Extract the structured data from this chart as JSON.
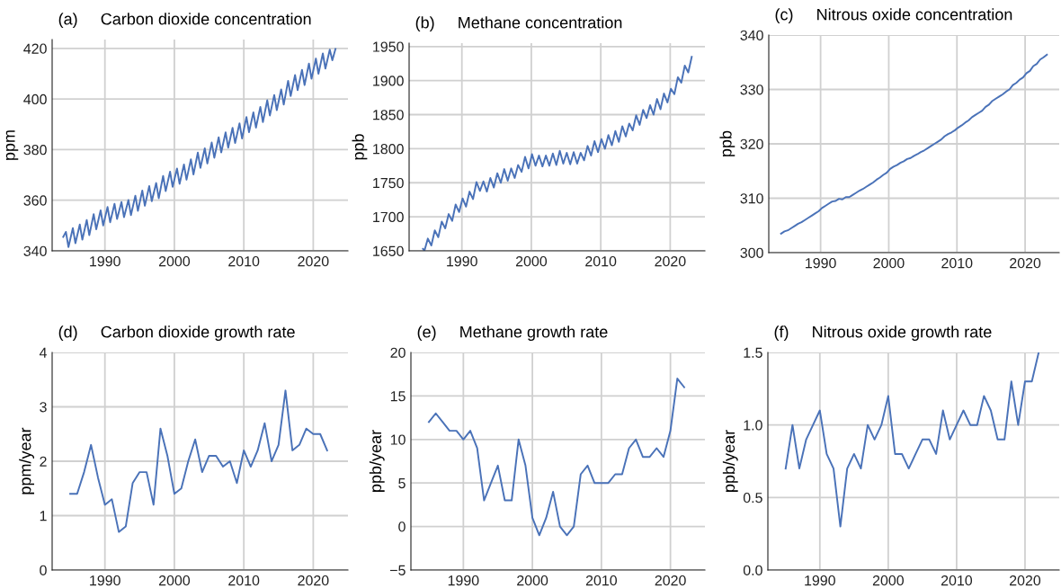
{
  "chart_data": [
    {
      "type": "line",
      "title": "(a)     Carbon dioxide concentration",
      "ylabel": "ppm",
      "xlim": [
        1982.4,
        2025
      ],
      "ylim": [
        340,
        423.5
      ],
      "xticks": [
        1990,
        2000,
        2010,
        2020
      ],
      "yticks": [
        340,
        360,
        380,
        400,
        420
      ],
      "grid": true,
      "x": [
        1984.0,
        1984.38,
        1984.75,
        1985.38,
        1985.75,
        1986.38,
        1986.75,
        1987.38,
        1987.75,
        1988.38,
        1988.75,
        1989.38,
        1989.75,
        1990.38,
        1990.75,
        1991.38,
        1991.75,
        1992.38,
        1992.75,
        1993.38,
        1993.75,
        1994.38,
        1994.75,
        1995.38,
        1995.75,
        1996.38,
        1996.75,
        1997.38,
        1997.75,
        1998.38,
        1998.75,
        1999.38,
        1999.75,
        2000.38,
        2000.75,
        2001.38,
        2001.75,
        2002.38,
        2002.75,
        2003.38,
        2003.75,
        2004.38,
        2004.75,
        2005.38,
        2005.75,
        2006.38,
        2006.75,
        2007.38,
        2007.75,
        2008.38,
        2008.75,
        2009.38,
        2009.75,
        2010.38,
        2010.75,
        2011.38,
        2011.75,
        2012.38,
        2012.75,
        2013.38,
        2013.75,
        2014.38,
        2014.75,
        2015.38,
        2015.75,
        2016.38,
        2016.75,
        2017.38,
        2017.75,
        2018.38,
        2018.75,
        2019.38,
        2019.75,
        2020.38,
        2020.75,
        2021.38,
        2021.75,
        2022.38,
        2022.75,
        2023.2
      ],
      "series": [
        {
          "color": "#4a72b8",
          "values": [
            345.5,
            347.5,
            341.5,
            349.0,
            343.0,
            350.4,
            344.4,
            352.2,
            346.2,
            354.5,
            348.5,
            356.0,
            350.0,
            357.3,
            351.3,
            358.6,
            352.6,
            359.3,
            353.3,
            360.1,
            354.1,
            361.8,
            355.8,
            363.8,
            357.8,
            365.6,
            359.6,
            366.8,
            360.8,
            369.6,
            363.6,
            371.3,
            365.3,
            372.5,
            366.5,
            374.1,
            368.1,
            376.2,
            370.2,
            378.8,
            372.8,
            380.5,
            374.5,
            382.8,
            376.8,
            384.9,
            378.9,
            386.8,
            380.8,
            388.6,
            382.6,
            390.4,
            384.4,
            392.9,
            386.9,
            394.7,
            388.7,
            396.9,
            390.9,
            399.5,
            393.5,
            401.6,
            395.6,
            403.8,
            397.8,
            407.2,
            401.2,
            409.5,
            403.5,
            411.5,
            405.5,
            414.0,
            408.0,
            416.0,
            410.0,
            418.0,
            412.0,
            419.5,
            415.3,
            419.8
          ]
        }
      ]
    },
    {
      "type": "line",
      "title": "(b)     Methane concentration",
      "ylabel": "ppb",
      "xlim": [
        1982.4,
        2025
      ],
      "ylim": [
        1650,
        1955
      ],
      "xticks": [
        1990,
        2000,
        2010,
        2020
      ],
      "yticks": [
        1650,
        1700,
        1750,
        1800,
        1850,
        1900,
        1950
      ],
      "grid": true,
      "x": [
        1984.4,
        1984.6,
        1985.1,
        1985.6,
        1986.1,
        1986.6,
        1987.1,
        1987.6,
        1988.1,
        1988.6,
        1989.1,
        1989.6,
        1990.1,
        1990.6,
        1991.1,
        1991.6,
        1992.1,
        1992.6,
        1993.1,
        1993.6,
        1994.1,
        1994.6,
        1995.1,
        1995.6,
        1996.1,
        1996.6,
        1997.1,
        1997.6,
        1998.1,
        1998.6,
        1999.1,
        1999.6,
        2000.1,
        2000.6,
        2001.1,
        2001.6,
        2002.1,
        2002.6,
        2003.1,
        2003.6,
        2004.1,
        2004.6,
        2005.1,
        2005.6,
        2006.1,
        2006.6,
        2007.1,
        2007.6,
        2008.1,
        2008.6,
        2009.1,
        2009.6,
        2010.1,
        2010.6,
        2011.1,
        2011.6,
        2012.1,
        2012.6,
        2013.1,
        2013.6,
        2014.1,
        2014.6,
        2015.1,
        2015.6,
        2016.1,
        2016.6,
        2017.1,
        2017.6,
        2018.1,
        2018.6,
        2019.1,
        2019.6,
        2020.1,
        2020.6,
        2021.1,
        2021.6,
        2022.1,
        2022.6,
        2023.1
      ],
      "series": [
        {
          "color": "#4a72b8",
          "values": [
            1653,
            1650,
            1668,
            1658,
            1680,
            1670,
            1693,
            1683,
            1704,
            1694,
            1718,
            1707,
            1727,
            1715,
            1737,
            1726,
            1751,
            1738,
            1752,
            1737,
            1757,
            1743,
            1764,
            1750,
            1770,
            1753,
            1771,
            1757,
            1776,
            1766,
            1788,
            1771,
            1792,
            1775,
            1790,
            1774,
            1790,
            1775,
            1793,
            1776,
            1797,
            1778,
            1794,
            1777,
            1795,
            1778,
            1794,
            1783,
            1804,
            1790,
            1811,
            1795,
            1814,
            1800,
            1820,
            1805,
            1826,
            1810,
            1833,
            1818,
            1837,
            1827,
            1849,
            1835,
            1857,
            1845,
            1864,
            1850,
            1873,
            1858,
            1881,
            1868,
            1888,
            1880,
            1905,
            1897,
            1922,
            1912,
            1935
          ]
        }
      ]
    },
    {
      "type": "line",
      "title": "(c)     Nitrous oxide concentration",
      "ylabel": "ppb",
      "xlim": [
        1982.4,
        2025
      ],
      "ylim": [
        300,
        340
      ],
      "xticks": [
        1990,
        2000,
        2010,
        2020
      ],
      "yticks": [
        300,
        310,
        320,
        330,
        340
      ],
      "grid": true,
      "x": [
        1984.2,
        1984.7,
        1985.2,
        1985.7,
        1986.2,
        1986.7,
        1987.2,
        1987.7,
        1988.2,
        1988.7,
        1989.2,
        1989.7,
        1990.2,
        1990.7,
        1991.2,
        1991.7,
        1992.2,
        1992.7,
        1993.2,
        1993.7,
        1994.2,
        1994.7,
        1995.2,
        1995.7,
        1996.2,
        1996.7,
        1997.2,
        1997.7,
        1998.2,
        1998.7,
        1999.2,
        1999.7,
        2000.2,
        2000.7,
        2001.2,
        2001.7,
        2002.2,
        2002.7,
        2003.2,
        2003.7,
        2004.2,
        2004.7,
        2005.2,
        2005.7,
        2006.2,
        2006.7,
        2007.2,
        2007.7,
        2008.2,
        2008.7,
        2009.2,
        2009.7,
        2010.2,
        2010.7,
        2011.2,
        2011.7,
        2012.2,
        2012.7,
        2013.2,
        2013.7,
        2014.2,
        2014.7,
        2015.2,
        2015.7,
        2016.2,
        2016.7,
        2017.2,
        2017.7,
        2018.2,
        2018.7,
        2019.2,
        2019.7,
        2020.2,
        2020.7,
        2021.2,
        2021.7,
        2022.2,
        2022.7,
        2023.2
      ],
      "series": [
        {
          "color": "#4a72b8",
          "values": [
            303.5,
            303.9,
            304.1,
            304.5,
            304.9,
            305.3,
            305.6,
            306.0,
            306.4,
            306.8,
            307.2,
            307.6,
            308.2,
            308.6,
            309.0,
            309.4,
            309.5,
            309.9,
            309.8,
            310.2,
            310.2,
            310.6,
            311.0,
            311.4,
            311.7,
            312.1,
            312.5,
            312.9,
            313.4,
            313.8,
            314.3,
            314.7,
            315.4,
            315.8,
            316.1,
            316.5,
            316.8,
            317.2,
            317.4,
            317.8,
            318.1,
            318.5,
            318.8,
            319.2,
            319.6,
            320.0,
            320.4,
            320.8,
            321.4,
            321.8,
            322.1,
            322.5,
            323.0,
            323.4,
            323.9,
            324.3,
            324.9,
            325.3,
            325.7,
            326.1,
            326.8,
            327.2,
            327.9,
            328.3,
            328.7,
            329.1,
            329.6,
            330.0,
            330.8,
            331.2,
            331.8,
            332.2,
            333.0,
            333.4,
            334.3,
            334.7,
            335.5,
            335.9,
            336.4
          ]
        }
      ]
    },
    {
      "type": "line",
      "title": "(d)     Carbon dioxide growth rate",
      "ylabel": "ppm/year",
      "xlim": [
        1982.4,
        2025
      ],
      "ylim": [
        0,
        4
      ],
      "xticks": [
        1990,
        2000,
        2010,
        2020
      ],
      "yticks": [
        0,
        1,
        2,
        3,
        4
      ],
      "grid": true,
      "x": [
        1985,
        1986,
        1987,
        1988,
        1989,
        1990,
        1991,
        1992,
        1993,
        1994,
        1995,
        1996,
        1997,
        1998,
        1999,
        2000,
        2001,
        2002,
        2003,
        2004,
        2005,
        2006,
        2007,
        2008,
        2009,
        2010,
        2011,
        2012,
        2013,
        2014,
        2015,
        2016,
        2017,
        2018,
        2019,
        2020,
        2021,
        2022
      ],
      "series": [
        {
          "color": "#4a72b8",
          "values": [
            1.4,
            1.4,
            1.8,
            2.3,
            1.7,
            1.2,
            1.3,
            0.7,
            0.8,
            1.6,
            1.8,
            1.8,
            1.2,
            2.6,
            2.1,
            1.4,
            1.5,
            2.0,
            2.4,
            1.8,
            2.1,
            2.1,
            1.9,
            2.0,
            1.6,
            2.2,
            1.9,
            2.2,
            2.7,
            2.0,
            2.3,
            3.3,
            2.2,
            2.3,
            2.6,
            2.5,
            2.5,
            2.2
          ]
        }
      ]
    },
    {
      "type": "line",
      "title": "(e)     Methane growth rate",
      "ylabel": "ppb/year",
      "xlim": [
        1982.4,
        2025
      ],
      "ylim": [
        -5,
        20
      ],
      "xticks": [
        1990,
        2000,
        2010,
        2020
      ],
      "yticks": [
        {
          "value": -5,
          "label": "−5"
        },
        0,
        5,
        10,
        15,
        20
      ],
      "grid": true,
      "x": [
        1985,
        1986,
        1987,
        1988,
        1989,
        1990,
        1991,
        1992,
        1993,
        1994,
        1995,
        1996,
        1997,
        1998,
        1999,
        2000,
        2001,
        2002,
        2003,
        2004,
        2005,
        2006,
        2007,
        2008,
        2009,
        2010,
        2011,
        2012,
        2013,
        2014,
        2015,
        2016,
        2017,
        2018,
        2019,
        2020,
        2021,
        2022
      ],
      "series": [
        {
          "color": "#4a72b8",
          "values": [
            12,
            13,
            12,
            11,
            11,
            10,
            11,
            9,
            3,
            5,
            7,
            3,
            3,
            10,
            7,
            1,
            -1,
            1,
            4,
            0,
            -1,
            0,
            6,
            7,
            5,
            5,
            5,
            6,
            6,
            9,
            10,
            8,
            8,
            9,
            8,
            11,
            17,
            16
          ]
        }
      ]
    },
    {
      "type": "line",
      "title": "(f)     Nitrous oxide growth rate",
      "ylabel": "ppb/year",
      "xlim": [
        1982.4,
        2025
      ],
      "ylim": [
        0,
        1.5
      ],
      "xticks": [
        1990,
        2000,
        2010,
        2020
      ],
      "yticks": [
        {
          "value": 0,
          "label": "0.0"
        },
        0.5,
        {
          "value": 1,
          "label": "1.0"
        },
        1.5
      ],
      "grid": true,
      "x": [
        1985,
        1986,
        1987,
        1988,
        1989,
        1990,
        1991,
        1992,
        1993,
        1994,
        1995,
        1996,
        1997,
        1998,
        1999,
        2000,
        2001,
        2002,
        2003,
        2004,
        2005,
        2006,
        2007,
        2008,
        2009,
        2010,
        2011,
        2012,
        2013,
        2014,
        2015,
        2016,
        2017,
        2018,
        2019,
        2020,
        2021,
        2022
      ],
      "series": [
        {
          "color": "#4a72b8",
          "values": [
            0.7,
            1.0,
            0.7,
            0.9,
            1.0,
            1.1,
            0.8,
            0.7,
            0.3,
            0.7,
            0.8,
            0.7,
            1.0,
            0.9,
            1.0,
            1.2,
            0.8,
            0.8,
            0.7,
            0.8,
            0.9,
            0.9,
            0.8,
            1.1,
            0.9,
            1.0,
            1.1,
            1.0,
            1.0,
            1.2,
            1.1,
            0.9,
            0.9,
            1.3,
            1.0,
            1.3,
            1.3,
            1.5
          ]
        }
      ]
    }
  ]
}
